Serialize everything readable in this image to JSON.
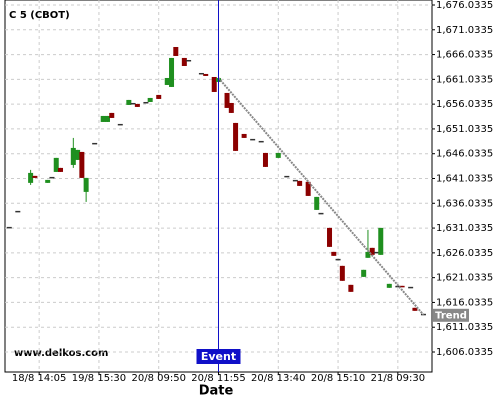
{
  "chart_data": {
    "type": "candlestick",
    "title": "C 5 (CBOT)",
    "x_label": "Date",
    "watermark": "www.delkos.com",
    "up_color": "#1f8f1f",
    "down_color": "#8b0000",
    "doji_color": "#333333",
    "grid": true,
    "xlim": [
      0,
      100
    ],
    "xticks": [
      {
        "value": 8,
        "label": "18/8 14:05"
      },
      {
        "value": 22,
        "label": "19/8 15:30"
      },
      {
        "value": 36,
        "label": "20/8 09:50"
      },
      {
        "value": 50,
        "label": "20/8 11:55"
      },
      {
        "value": 64,
        "label": "20/8 13:40"
      },
      {
        "value": 78,
        "label": "20/8 15:10"
      },
      {
        "value": 92,
        "label": "21/8 09:30"
      }
    ],
    "ylim": [
      1602.0,
      1677.04
    ],
    "yticks": [
      {
        "value": 1606.0335,
        "label": "1,606.0335"
      },
      {
        "value": 1611.0335,
        "label": "1,611.0335"
      },
      {
        "value": 1616.0335,
        "label": "1,616.0335"
      },
      {
        "value": 1621.0335,
        "label": "1,621.0335"
      },
      {
        "value": 1626.0335,
        "label": "1,626.0335"
      },
      {
        "value": 1631.0335,
        "label": "1,631.0335"
      },
      {
        "value": 1636.0335,
        "label": "1,636.0335"
      },
      {
        "value": 1641.0335,
        "label": "1,641.0335"
      },
      {
        "value": 1646.0335,
        "label": "1,646.0335"
      },
      {
        "value": 1651.0335,
        "label": "1,651.0335"
      },
      {
        "value": 1656.0335,
        "label": "1,656.0335"
      },
      {
        "value": 1661.0335,
        "label": "1,661.0335"
      },
      {
        "value": 1666.0335,
        "label": "1,666.0335"
      },
      {
        "value": 1671.0335,
        "label": "1,671.0335"
      },
      {
        "value": 1676.0335,
        "label": "1,676.0335"
      }
    ],
    "x": [
      1,
      3,
      6,
      7,
      10,
      11,
      12,
      13,
      16,
      17,
      18,
      19,
      21,
      23,
      24,
      25,
      27,
      29,
      30,
      31,
      33,
      34,
      36,
      38,
      39,
      40,
      42,
      43,
      46,
      47,
      49,
      50,
      52,
      53,
      54,
      56,
      58,
      60,
      61,
      64,
      66,
      68,
      69,
      71,
      73,
      74,
      76,
      77,
      78,
      79,
      81,
      84,
      85,
      86,
      87,
      88,
      90,
      92,
      93,
      95,
      96,
      98
    ],
    "open": [
      1631.27,
      1634.5,
      1640.15,
      1641.56,
      1640.15,
      1641.35,
      1642.36,
      1643.17,
      1643.77,
      1644.78,
      1646.39,
      1638.33,
      1648.21,
      1652.44,
      1652.44,
      1654.26,
      1652.04,
      1655.87,
      1656.27,
      1656.07,
      1656.47,
      1656.47,
      1657.89,
      1659.9,
      1659.5,
      1667.56,
      1665.35,
      1664.94,
      1662.32,
      1662.12,
      1661.51,
      1660.51,
      1658.29,
      1656.27,
      1652.24,
      1650.02,
      1649.02,
      1648.61,
      1646.19,
      1645.19,
      1641.56,
      1640.75,
      1640.55,
      1640.35,
      1634.7,
      1634.1,
      1631.07,
      1626.23,
      1624.82,
      1623.41,
      1619.58,
      1621.19,
      1625.03,
      1627.04,
      1626.23,
      1625.63,
      1618.98,
      1619.38,
      1619.38,
      1619.18,
      1614.95,
      1613.74
    ],
    "high": [
      1631.27,
      1634.5,
      1642.77,
      1641.56,
      1640.75,
      1641.35,
      1645.19,
      1643.17,
      1649.22,
      1646.8,
      1646.39,
      1641.15,
      1648.21,
      1653.65,
      1653.65,
      1654.26,
      1652.04,
      1656.88,
      1656.27,
      1656.07,
      1656.47,
      1657.28,
      1657.89,
      1661.31,
      1665.35,
      1667.56,
      1665.35,
      1664.94,
      1662.32,
      1662.12,
      1661.51,
      1661.31,
      1658.29,
      1656.27,
      1652.24,
      1650.02,
      1649.02,
      1648.61,
      1646.19,
      1646.19,
      1641.56,
      1640.75,
      1640.55,
      1640.35,
      1637.32,
      1634.1,
      1631.07,
      1626.23,
      1624.82,
      1623.41,
      1619.58,
      1622.61,
      1630.67,
      1627.04,
      1626.23,
      1631.07,
      1619.78,
      1619.38,
      1619.38,
      1619.18,
      1614.95,
      1613.74
    ],
    "low": [
      1631.27,
      1634.5,
      1639.74,
      1641.15,
      1640.15,
      1641.35,
      1642.36,
      1642.36,
      1643.17,
      1644.78,
      1641.15,
      1636.31,
      1648.21,
      1652.44,
      1652.44,
      1653.25,
      1652.04,
      1655.87,
      1656.27,
      1655.47,
      1656.47,
      1656.47,
      1657.08,
      1659.9,
      1659.5,
      1665.75,
      1663.73,
      1664.94,
      1662.32,
      1661.72,
      1658.49,
      1660.51,
      1655.27,
      1654.26,
      1646.6,
      1649.22,
      1649.02,
      1648.61,
      1643.37,
      1645.19,
      1641.56,
      1640.75,
      1639.54,
      1637.52,
      1634.7,
      1634.1,
      1627.24,
      1625.43,
      1624.82,
      1620.39,
      1618.17,
      1621.19,
      1625.03,
      1625.63,
      1626.23,
      1625.63,
      1618.98,
      1619.38,
      1619.18,
      1619.18,
      1614.34,
      1613.74
    ],
    "close": [
      1631.27,
      1634.5,
      1642.16,
      1641.15,
      1640.75,
      1641.35,
      1645.19,
      1642.36,
      1647.2,
      1646.8,
      1641.15,
      1641.15,
      1648.21,
      1653.65,
      1653.65,
      1653.25,
      1652.04,
      1656.88,
      1656.27,
      1655.47,
      1656.47,
      1657.28,
      1657.08,
      1661.31,
      1665.35,
      1665.75,
      1663.73,
      1664.94,
      1662.32,
      1661.72,
      1658.49,
      1661.31,
      1655.27,
      1654.26,
      1646.6,
      1649.22,
      1649.02,
      1648.61,
      1643.37,
      1646.19,
      1641.56,
      1640.75,
      1639.54,
      1637.52,
      1637.32,
      1634.1,
      1627.24,
      1625.43,
      1624.82,
      1620.39,
      1618.17,
      1622.61,
      1626.23,
      1625.63,
      1626.23,
      1631.07,
      1619.78,
      1619.38,
      1619.18,
      1619.18,
      1614.34,
      1613.74
    ],
    "trend": {
      "label": "Trend",
      "color": "#888888",
      "x": [
        50,
        98
      ],
      "y": [
        1661.31,
        1613.54
      ]
    },
    "event": {
      "label": "Event",
      "color": "#1010c8",
      "x": 50
    }
  }
}
